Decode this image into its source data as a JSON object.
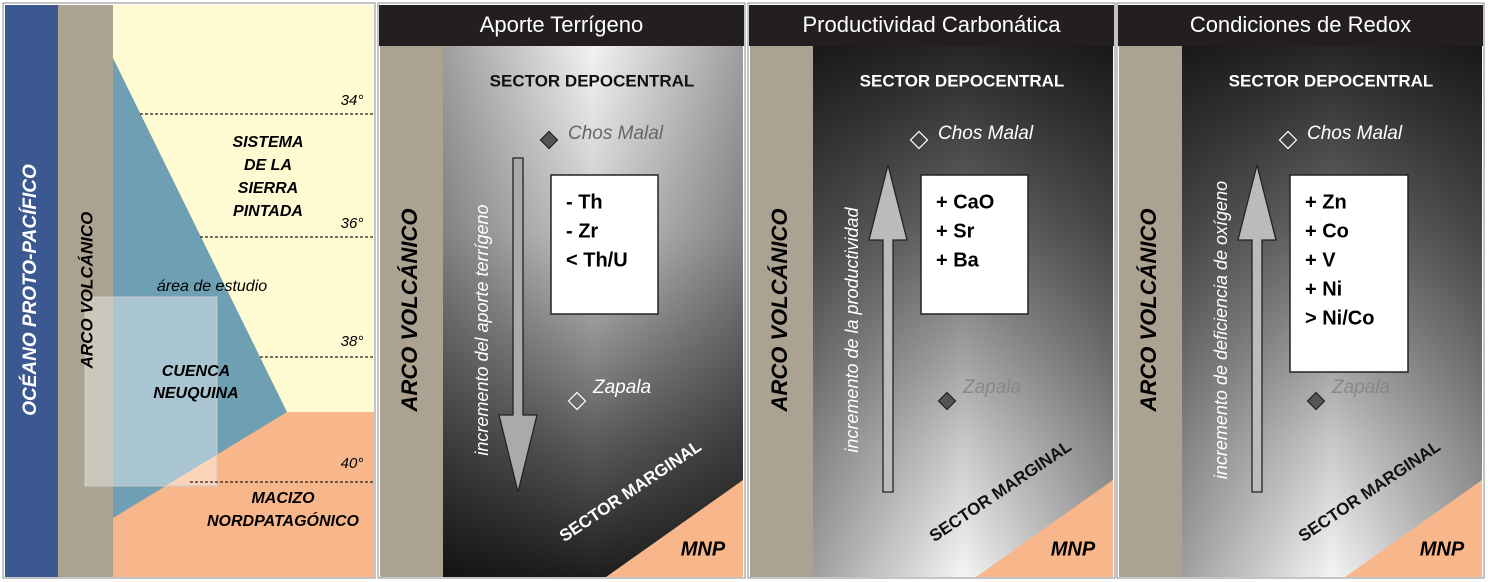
{
  "map": {
    "ocean": "OCÉANO PROTO-PACÍFICO",
    "arc": "ARCO VOLCÁNICO",
    "sierra": [
      "SISTEMA",
      "DE LA",
      "SIERRA",
      "PINTADA"
    ],
    "latitudes": [
      "34°",
      "36°",
      "38°",
      "40°"
    ],
    "study_area": "área de estudio",
    "basin": [
      "CUENCA",
      "NEUQUINA"
    ],
    "massif": [
      "MACIZO",
      "NORDPATAGÓNICO"
    ]
  },
  "panels": [
    {
      "title": "Aporte Terrígeno",
      "arc": "ARCO VOLCÁNICO",
      "depocentral": "SECTOR DEPOCENTRAL",
      "north": "Chos Malal",
      "south": "Zapala",
      "trend": "incremento del aporte terrígeno",
      "proxies": [
        "- Th",
        "- Zr",
        "< Th/U"
      ],
      "marginal": "SECTOR MARGINAL",
      "mnp": "MNP"
    },
    {
      "title": "Productividad Carbonática",
      "arc": "ARCO VOLCÁNICO",
      "depocentral": "SECTOR DEPOCENTRAL",
      "north": "Chos Malal",
      "south": "Zapala",
      "trend": "incremento de la productividad",
      "proxies": [
        "+ CaO",
        "+ Sr",
        "+ Ba"
      ],
      "marginal": "SECTOR MARGINAL",
      "mnp": "MNP"
    },
    {
      "title": "Condiciones de Redox",
      "arc": "ARCO VOLCÁNICO",
      "depocentral": "SECTOR DEPOCENTRAL",
      "north": "Chos Malal",
      "south": "Zapala",
      "trend": "incremento de deficiencia de oxígeno",
      "proxies": [
        "+ Zn",
        "+ Co",
        "+ V",
        "+ Ni",
        "> Ni/Co"
      ],
      "marginal": "SECTOR MARGINAL",
      "mnp": "MNP"
    }
  ]
}
